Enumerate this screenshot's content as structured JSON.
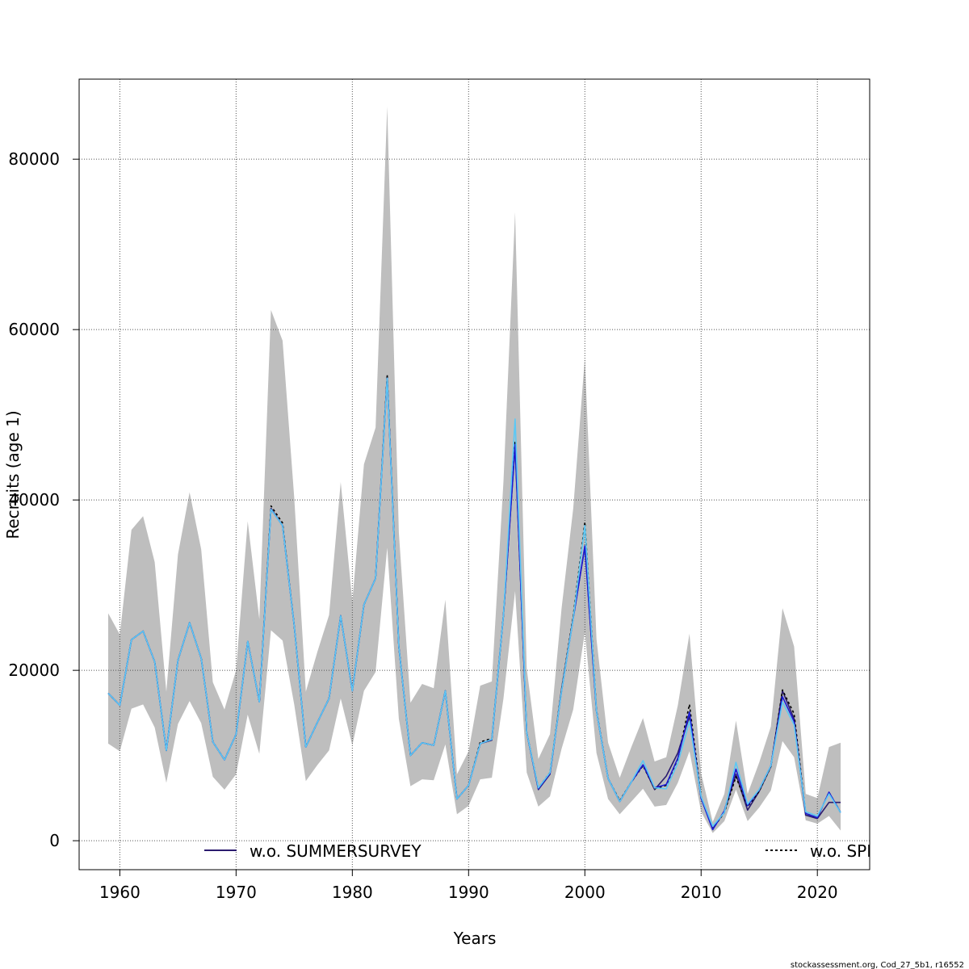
{
  "chart_data": {
    "type": "line",
    "xlabel": "Years",
    "ylabel": "Recruits (age 1)",
    "xlim": [
      1956.5,
      2024.5
    ],
    "ylim": [
      -3400,
      89400
    ],
    "xticks": [
      1960,
      1970,
      1980,
      1990,
      2000,
      2010,
      2020
    ],
    "yticks": [
      0,
      20000,
      40000,
      60000,
      80000
    ],
    "grid": true,
    "band_color": "#bebebe",
    "x": [
      1959,
      1960,
      1961,
      1962,
      1963,
      1964,
      1965,
      1966,
      1967,
      1968,
      1969,
      1970,
      1971,
      1972,
      1973,
      1974,
      1975,
      1976,
      1977,
      1978,
      1979,
      1980,
      1981,
      1982,
      1983,
      1984,
      1985,
      1986,
      1987,
      1988,
      1989,
      1990,
      1991,
      1992,
      1993,
      1994,
      1995,
      1996,
      1997,
      1998,
      1999,
      2000,
      2001,
      2002,
      2003,
      2004,
      2005,
      2006,
      2007,
      2008,
      2009,
      2010,
      2011,
      2012,
      2013,
      2014,
      2015,
      2016,
      2017,
      2018,
      2019,
      2020,
      2021,
      2022
    ],
    "band_upper": [
      26700,
      24200,
      36500,
      38100,
      32700,
      17500,
      33600,
      40900,
      34200,
      18600,
      15400,
      20000,
      37500,
      26000,
      62300,
      58700,
      40300,
      17500,
      22200,
      26500,
      42100,
      28100,
      44200,
      48500,
      86200,
      36200,
      16200,
      18400,
      17900,
      28300,
      7800,
      10500,
      18200,
      18700,
      42200,
      73800,
      20200,
      9600,
      12500,
      27300,
      39000,
      56700,
      23700,
      11500,
      7400,
      11000,
      14400,
      9300,
      9800,
      15900,
      24300,
      7900,
      2200,
      5500,
      14100,
      5500,
      9200,
      13400,
      27300,
      22800,
      5500,
      5000,
      11000,
      11500
    ],
    "band_lower": [
      11400,
      10500,
      15500,
      16000,
      13300,
      6800,
      13700,
      16400,
      13800,
      7500,
      6000,
      7800,
      14800,
      10200,
      24700,
      23500,
      16000,
      7000,
      8900,
      10600,
      16700,
      11200,
      17600,
      19800,
      34400,
      14300,
      6400,
      7200,
      7100,
      11300,
      3100,
      4100,
      7200,
      7400,
      16700,
      29300,
      8000,
      4000,
      5200,
      10800,
      15400,
      24500,
      10300,
      4900,
      3100,
      4600,
      6100,
      4000,
      4200,
      6800,
      10500,
      3400,
      900,
      2300,
      6000,
      2300,
      3900,
      5900,
      11700,
      9800,
      2400,
      2000,
      2900,
      1200
    ],
    "series": [
      {
        "name": "w.o. SUMMERSURVEY",
        "color": "#2b1b6e",
        "dash": "",
        "values": [
          17300,
          15900,
          23600,
          24600,
          21000,
          10600,
          21200,
          25600,
          21400,
          11600,
          9500,
          12500,
          23400,
          16300,
          39000,
          37000,
          25300,
          11000,
          13900,
          16700,
          26400,
          17600,
          27700,
          30800,
          54500,
          22800,
          10000,
          11500,
          11200,
          17600,
          4900,
          6500,
          11400,
          11800,
          26500,
          46400,
          12700,
          6000,
          7800,
          17800,
          26200,
          34500,
          15200,
          7300,
          4600,
          6900,
          8900,
          6000,
          7600,
          10300,
          14600,
          5000,
          1400,
          3400,
          7800,
          3600,
          5800,
          8700,
          17600,
          14300,
          3000,
          2600,
          4500,
          4500
        ]
      },
      {
        "name": "w.o. SPRINGSURVEY",
        "color": "#000000",
        "dash": "3,3",
        "values": [
          17300,
          15900,
          23600,
          24600,
          21000,
          10600,
          21200,
          25600,
          21400,
          11600,
          9500,
          12500,
          23400,
          16300,
          39300,
          37300,
          25300,
          11000,
          13900,
          16700,
          26400,
          17600,
          27700,
          30800,
          54700,
          22800,
          10000,
          11500,
          11200,
          17600,
          4900,
          6500,
          11600,
          12000,
          26500,
          46900,
          12700,
          6200,
          8000,
          17800,
          26400,
          37400,
          15300,
          7300,
          4700,
          6900,
          8800,
          6100,
          6500,
          9600,
          16000,
          5200,
          1400,
          3300,
          7500,
          4000,
          5800,
          8700,
          17700,
          14900,
          3200,
          2700,
          5700,
          3300
        ]
      },
      {
        "name": "",
        "color": "#1a1ad6",
        "dash": "",
        "values": [
          17300,
          15900,
          23600,
          24600,
          21000,
          10600,
          21200,
          25600,
          21400,
          11600,
          9500,
          12500,
          23400,
          16300,
          38900,
          37000,
          25300,
          11000,
          13900,
          16700,
          26400,
          17600,
          27700,
          30800,
          54300,
          22800,
          10000,
          11500,
          11200,
          17600,
          4900,
          6500,
          11400,
          11900,
          26500,
          46500,
          12700,
          6100,
          7900,
          17600,
          26100,
          34600,
          15200,
          7300,
          4600,
          6900,
          8900,
          6200,
          6600,
          9700,
          15100,
          5000,
          1300,
          3500,
          8400,
          4100,
          6000,
          8800,
          16900,
          14000,
          3200,
          2700,
          5700,
          3300
        ]
      },
      {
        "name": "",
        "color": "#5bc8f5",
        "dash": "",
        "values": [
          17300,
          15900,
          23600,
          24600,
          21000,
          10600,
          21200,
          25600,
          21400,
          11600,
          9500,
          12500,
          23400,
          16300,
          38900,
          37000,
          25300,
          11000,
          13900,
          16700,
          26400,
          17600,
          27700,
          30800,
          54300,
          22800,
          10000,
          11500,
          11200,
          17600,
          4900,
          6500,
          11400,
          11900,
          26500,
          49500,
          12700,
          6200,
          8000,
          17600,
          26100,
          37000,
          15200,
          7300,
          4600,
          6900,
          9400,
          6200,
          6100,
          9100,
          14000,
          5200,
          1700,
          3300,
          9200,
          4300,
          6000,
          8800,
          16300,
          13600,
          3400,
          2900,
          5500,
          3300
        ]
      }
    ]
  },
  "footer": "stockassessment.org, Cod_27_5b1, r16552"
}
